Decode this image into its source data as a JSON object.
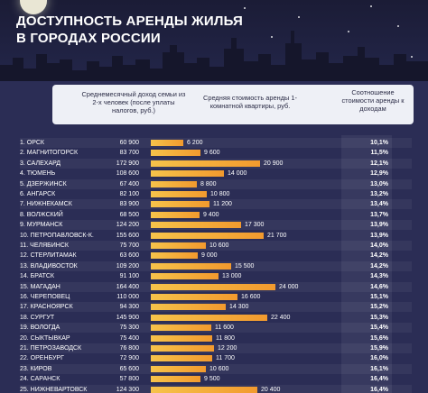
{
  "title_line1": "ДОСТУПНОСТЬ АРЕНДЫ ЖИЛЬЯ",
  "title_line2": "В ГОРОДАХ РОССИИ",
  "header": {
    "income": "Среднемесячный доход семьи из 2-х человек (после уплаты налогов, руб.)",
    "rent": "Средняя стоимость аренды 1-комнатной квартиры, руб.",
    "ratio": "Соотношение стоимости аренды к доходам"
  },
  "colors": {
    "bar_start": "#f6c34a",
    "bar_end": "#f29a2e",
    "background": "#2b2d55"
  },
  "chart_data": {
    "type": "bar",
    "orientation": "horizontal",
    "rows": [
      {
        "rank": "1.",
        "city": "ОРСК",
        "income": "60 900",
        "rent": 6200,
        "rent_label": "6 200",
        "ratio": "10,1%"
      },
      {
        "rank": "2.",
        "city": "МАГНИТОГОРСК",
        "income": "83 700",
        "rent": 9600,
        "rent_label": "9 600",
        "ratio": "11,5%"
      },
      {
        "rank": "3.",
        "city": "САЛЕХАРД",
        "income": "172 900",
        "rent": 20900,
        "rent_label": "20 900",
        "ratio": "12,1%"
      },
      {
        "rank": "4.",
        "city": "ТЮМЕНЬ",
        "income": "108 600",
        "rent": 14000,
        "rent_label": "14 000",
        "ratio": "12,9%"
      },
      {
        "rank": "5.",
        "city": "ДЗЕРЖИНСК",
        "income": "67 400",
        "rent": 8800,
        "rent_label": "8 800",
        "ratio": "13,0%"
      },
      {
        "rank": "6.",
        "city": "АНГАРСК",
        "income": "82 100",
        "rent": 10800,
        "rent_label": "10 800",
        "ratio": "13,2%"
      },
      {
        "rank": "7.",
        "city": "НИЖНЕКАМСК",
        "income": "83 900",
        "rent": 11200,
        "rent_label": "11 200",
        "ratio": "13,4%"
      },
      {
        "rank": "8.",
        "city": "ВОЛЖСКИЙ",
        "income": "68 500",
        "rent": 9400,
        "rent_label": "9 400",
        "ratio": "13,7%"
      },
      {
        "rank": "9.",
        "city": "МУРМАНСК",
        "income": "124 200",
        "rent": 17300,
        "rent_label": "17 300",
        "ratio": "13,9%"
      },
      {
        "rank": "10.",
        "city": "ПЕТРОПАВЛОВСК-К.",
        "income": "155 600",
        "rent": 21700,
        "rent_label": "21 700",
        "ratio": "13,9%"
      },
      {
        "rank": "11.",
        "city": "ЧЕЛЯБИНСК",
        "income": "75 700",
        "rent": 10600,
        "rent_label": "10 600",
        "ratio": "14,0%"
      },
      {
        "rank": "12.",
        "city": "СТЕРЛИТАМАК",
        "income": "63 600",
        "rent": 9000,
        "rent_label": "9 000",
        "ratio": "14,2%"
      },
      {
        "rank": "13.",
        "city": "ВЛАДИВОСТОК",
        "income": "109 200",
        "rent": 15500,
        "rent_label": "15 500",
        "ratio": "14,2%"
      },
      {
        "rank": "14.",
        "city": "БРАТСК",
        "income": "91 100",
        "rent": 13000,
        "rent_label": "13 000",
        "ratio": "14,3%"
      },
      {
        "rank": "15.",
        "city": "МАГАДАН",
        "income": "164 400",
        "rent": 24000,
        "rent_label": "24 000",
        "ratio": "14,6%"
      },
      {
        "rank": "16.",
        "city": "ЧЕРЕПОВЕЦ",
        "income": "110 000",
        "rent": 16600,
        "rent_label": "16 600",
        "ratio": "15,1%"
      },
      {
        "rank": "17.",
        "city": "КРАСНОЯРСК",
        "income": "94 300",
        "rent": 14300,
        "rent_label": "14 300",
        "ratio": "15,2%"
      },
      {
        "rank": "18.",
        "city": "СУРГУТ",
        "income": "145 900",
        "rent": 22400,
        "rent_label": "22 400",
        "ratio": "15,3%"
      },
      {
        "rank": "19.",
        "city": "ВОЛОГДА",
        "income": "75 300",
        "rent": 11600,
        "rent_label": "11 600",
        "ratio": "15,4%"
      },
      {
        "rank": "20.",
        "city": "СЫКТЫВКАР",
        "income": "75 400",
        "rent": 11800,
        "rent_label": "11 800",
        "ratio": "15,6%"
      },
      {
        "rank": "21.",
        "city": "ПЕТРОЗАВОДСК",
        "income": "76 800",
        "rent": 12200,
        "rent_label": "12 200",
        "ratio": "15,9%"
      },
      {
        "rank": "22.",
        "city": "ОРЕНБУРГ",
        "income": "72 900",
        "rent": 11700,
        "rent_label": "11 700",
        "ratio": "16,0%"
      },
      {
        "rank": "23.",
        "city": "КИРОВ",
        "income": "65 600",
        "rent": 10600,
        "rent_label": "10 600",
        "ratio": "16,1%"
      },
      {
        "rank": "24.",
        "city": "САРАНСК",
        "income": "57 800",
        "rent": 9500,
        "rent_label": "9 500",
        "ratio": "16,4%"
      },
      {
        "rank": "25.",
        "city": "НИЖНЕВАРТОВСК",
        "income": "124 300",
        "rent": 20400,
        "rent_label": "20 400",
        "ratio": "16,4%"
      }
    ]
  }
}
